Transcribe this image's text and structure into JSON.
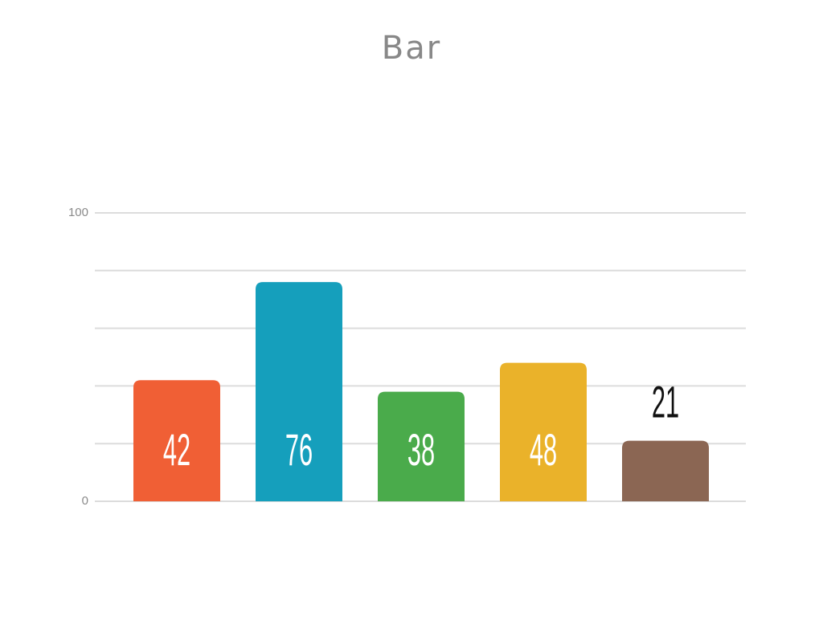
{
  "chart_data": {
    "type": "bar",
    "title": "Bar",
    "categories": [
      null,
      null,
      null,
      null,
      null
    ],
    "values": [
      42,
      76,
      38,
      48,
      21
    ],
    "colors": [
      "#f05f35",
      "#159fbc",
      "#4aab4b",
      "#eab22a",
      "#8b6653"
    ],
    "ylim": [
      0,
      100
    ],
    "yticks": [
      0,
      100
    ],
    "minor_gridlines": [
      20,
      40,
      60,
      80
    ],
    "grid": true
  }
}
